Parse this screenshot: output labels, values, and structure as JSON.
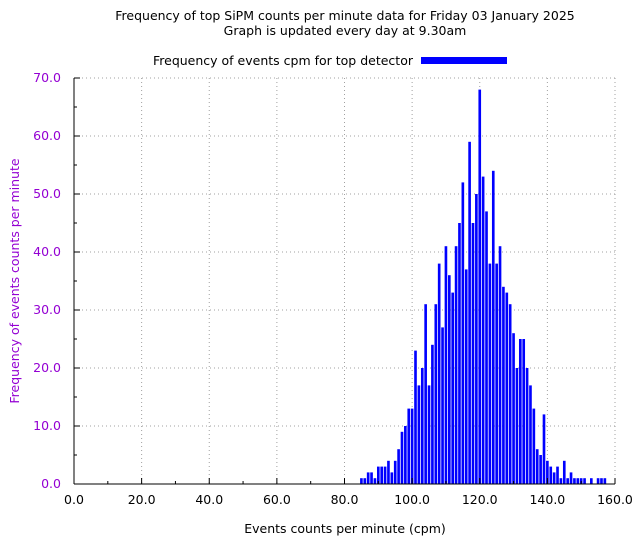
{
  "colors": {
    "bars": "#0000ff",
    "ylabel": "#9400d3",
    "text": "#000000",
    "grid": "#a0a0a0"
  },
  "chart_data": {
    "type": "bar",
    "title": [
      "Frequency of top SiPM counts per minute data for Friday 03 January 2025",
      "Graph is updated every day at 9.30am"
    ],
    "xlabel": "Events counts per minute (cpm)",
    "ylabel": "Frequency of events counts per minute",
    "xlim": [
      0,
      160
    ],
    "ylim": [
      0,
      70
    ],
    "x_ticks": [
      0,
      20,
      40,
      60,
      80,
      100,
      120,
      140,
      160
    ],
    "x_tick_labels": [
      "0.0",
      "20.0",
      "40.0",
      "60.0",
      "80.0",
      "100.0",
      "120.0",
      "140.0",
      "160.0"
    ],
    "y_ticks": [
      0,
      10,
      20,
      30,
      40,
      50,
      60,
      70
    ],
    "y_tick_labels": [
      "0.0",
      "10.0",
      "20.0",
      "30.0",
      "40.0",
      "50.0",
      "60.0",
      "70.0"
    ],
    "grid": true,
    "legend_position": "top",
    "series": [
      {
        "name": "Frequency of events cpm for top detector",
        "x": [
          85,
          86,
          87,
          88,
          89,
          90,
          91,
          92,
          93,
          94,
          95,
          96,
          97,
          98,
          99,
          100,
          101,
          102,
          103,
          104,
          105,
          106,
          107,
          108,
          109,
          110,
          111,
          112,
          113,
          114,
          115,
          116,
          117,
          118,
          119,
          120,
          121,
          122,
          123,
          124,
          125,
          126,
          127,
          128,
          129,
          130,
          131,
          132,
          133,
          134,
          135,
          136,
          137,
          138,
          139,
          140,
          141,
          142,
          143,
          144,
          145,
          146,
          147,
          148,
          149,
          150,
          151,
          153,
          155,
          156,
          157
        ],
        "values": [
          1,
          1,
          2,
          2,
          1,
          3,
          3,
          3,
          4,
          2,
          4,
          6,
          9,
          10,
          13,
          13,
          23,
          17,
          20,
          31,
          17,
          24,
          31,
          38,
          27,
          41,
          36,
          33,
          41,
          45,
          52,
          37,
          59,
          45,
          50,
          68,
          53,
          47,
          38,
          54,
          38,
          41,
          34,
          33,
          31,
          26,
          20,
          25,
          25,
          20,
          17,
          13,
          6,
          5,
          12,
          4,
          3,
          2,
          3,
          1,
          4,
          1,
          2,
          1,
          1,
          1,
          1,
          1,
          1,
          1,
          1
        ]
      }
    ]
  }
}
